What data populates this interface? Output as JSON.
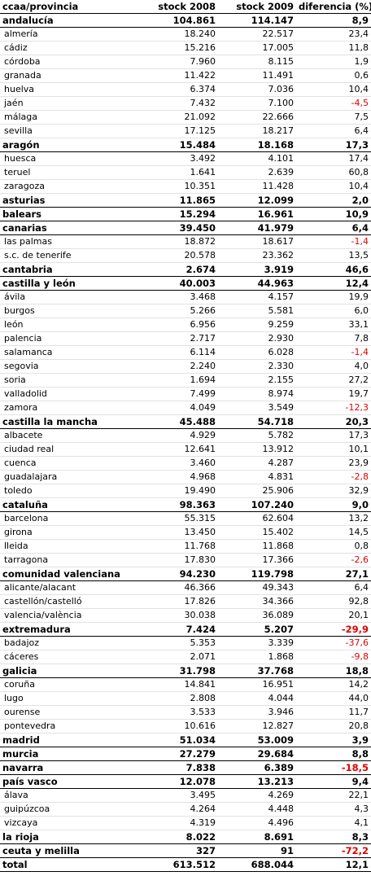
{
  "headers": {
    "col1": "ccaa/provincia",
    "col2": "stock 2008",
    "col3": "stock 2009",
    "col4": "diferencia (%)"
  },
  "rows": [
    {
      "type": "region",
      "name": "andalucía",
      "s2008": "104.861",
      "s2009": "114.147",
      "diff": "8,9"
    },
    {
      "type": "province",
      "name": "almería",
      "s2008": "18.240",
      "s2009": "22.517",
      "diff": "23,4"
    },
    {
      "type": "province",
      "name": "cádiz",
      "s2008": "15.216",
      "s2009": "17.005",
      "diff": "11,8"
    },
    {
      "type": "province",
      "name": "córdoba",
      "s2008": "7.960",
      "s2009": "8.115",
      "diff": "1,9"
    },
    {
      "type": "province",
      "name": "granada",
      "s2008": "11.422",
      "s2009": "11.491",
      "diff": "0,6"
    },
    {
      "type": "province",
      "name": "huelva",
      "s2008": "6.374",
      "s2009": "7.036",
      "diff": "10,4"
    },
    {
      "type": "province",
      "name": "jaén",
      "s2008": "7.432",
      "s2009": "7.100",
      "diff": "-4,5"
    },
    {
      "type": "province",
      "name": "málaga",
      "s2008": "21.092",
      "s2009": "22.666",
      "diff": "7,5"
    },
    {
      "type": "province",
      "name": "sevilla",
      "s2008": "17.125",
      "s2009": "18.217",
      "diff": "6,4"
    },
    {
      "type": "region",
      "name": "aragón",
      "s2008": "15.484",
      "s2009": "18.168",
      "diff": "17,3"
    },
    {
      "type": "province",
      "name": "huesca",
      "s2008": "3.492",
      "s2009": "4.101",
      "diff": "17,4"
    },
    {
      "type": "province",
      "name": "teruel",
      "s2008": "1.641",
      "s2009": "2.639",
      "diff": "60,8"
    },
    {
      "type": "province",
      "name": "zaragoza",
      "s2008": "10.351",
      "s2009": "11.428",
      "diff": "10,4"
    },
    {
      "type": "region",
      "name": "asturias",
      "s2008": "11.865",
      "s2009": "12.099",
      "diff": "2,0"
    },
    {
      "type": "region",
      "name": "balears",
      "s2008": "15.294",
      "s2009": "16.961",
      "diff": "10,9"
    },
    {
      "type": "region",
      "name": "canarias",
      "s2008": "39.450",
      "s2009": "41.979",
      "diff": "6,4"
    },
    {
      "type": "province",
      "name": "las palmas",
      "s2008": "18.872",
      "s2009": "18.617",
      "diff": "-1,4"
    },
    {
      "type": "province",
      "name": "s.c. de tenerife",
      "s2008": "20.578",
      "s2009": "23.362",
      "diff": "13,5"
    },
    {
      "type": "region",
      "name": "cantabria",
      "s2008": "2.674",
      "s2009": "3.919",
      "diff": "46,6"
    },
    {
      "type": "region",
      "name": "castilla y león",
      "s2008": "40.003",
      "s2009": "44.963",
      "diff": "12,4"
    },
    {
      "type": "province",
      "name": "ávila",
      "s2008": "3.468",
      "s2009": "4.157",
      "diff": "19,9"
    },
    {
      "type": "province",
      "name": "burgos",
      "s2008": "5.266",
      "s2009": "5.581",
      "diff": "6,0"
    },
    {
      "type": "province",
      "name": "león",
      "s2008": "6.956",
      "s2009": "9.259",
      "diff": "33,1"
    },
    {
      "type": "province",
      "name": "palencia",
      "s2008": "2.717",
      "s2009": "2.930",
      "diff": "7,8"
    },
    {
      "type": "province",
      "name": "salamanca",
      "s2008": "6.114",
      "s2009": "6.028",
      "diff": "-1,4"
    },
    {
      "type": "province",
      "name": "segovia",
      "s2008": "2.240",
      "s2009": "2.330",
      "diff": "4,0"
    },
    {
      "type": "province",
      "name": "soria",
      "s2008": "1.694",
      "s2009": "2.155",
      "diff": "27,2"
    },
    {
      "type": "province",
      "name": "valladolid",
      "s2008": "7.499",
      "s2009": "8.974",
      "diff": "19,7"
    },
    {
      "type": "province",
      "name": "zamora",
      "s2008": "4.049",
      "s2009": "3.549",
      "diff": "-12,3"
    },
    {
      "type": "region",
      "name": "castilla la mancha",
      "s2008": "45.488",
      "s2009": "54.718",
      "diff": "20,3"
    },
    {
      "type": "province",
      "name": "albacete",
      "s2008": "4.929",
      "s2009": "5.782",
      "diff": "17,3"
    },
    {
      "type": "province",
      "name": "ciudad real",
      "s2008": "12.641",
      "s2009": "13.912",
      "diff": "10,1"
    },
    {
      "type": "province",
      "name": "cuenca",
      "s2008": "3.460",
      "s2009": "4.287",
      "diff": "23,9"
    },
    {
      "type": "province",
      "name": "guadalajara",
      "s2008": "4.968",
      "s2009": "4.831",
      "diff": "-2,8"
    },
    {
      "type": "province",
      "name": "toledo",
      "s2008": "19.490",
      "s2009": "25.906",
      "diff": "32,9"
    },
    {
      "type": "region",
      "name": "cataluña",
      "s2008": "98.363",
      "s2009": "107.240",
      "diff": "9,0"
    },
    {
      "type": "province",
      "name": "barcelona",
      "s2008": "55.315",
      "s2009": "62.604",
      "diff": "13,2"
    },
    {
      "type": "province",
      "name": "girona",
      "s2008": "13.450",
      "s2009": "15.402",
      "diff": "14,5"
    },
    {
      "type": "province",
      "name": "lleida",
      "s2008": "11.768",
      "s2009": "11.868",
      "diff": "0,8"
    },
    {
      "type": "province",
      "name": "tarragona",
      "s2008": "17.830",
      "s2009": "17.366",
      "diff": "-2,6"
    },
    {
      "type": "region",
      "name": "comunidad valenciana",
      "s2008": "94.230",
      "s2009": "119.798",
      "diff": "27,1"
    },
    {
      "type": "province",
      "name": "alicante/alacant",
      "s2008": "46.366",
      "s2009": "49.343",
      "diff": "6,4"
    },
    {
      "type": "province",
      "name": "castellón/castelló",
      "s2008": "17.826",
      "s2009": "34.366",
      "diff": "92,8"
    },
    {
      "type": "province",
      "name": "valencia/valència",
      "s2008": "30.038",
      "s2009": "36.089",
      "diff": "20,1"
    },
    {
      "type": "region",
      "name": "extremadura",
      "s2008": "7.424",
      "s2009": "5.207",
      "diff": "-29,9"
    },
    {
      "type": "province",
      "name": "badajoz",
      "s2008": "5.353",
      "s2009": "3.339",
      "diff": "-37,6"
    },
    {
      "type": "province",
      "name": "cáceres",
      "s2008": "2.071",
      "s2009": "1.868",
      "diff": "-9,8"
    },
    {
      "type": "region",
      "name": "galicia",
      "s2008": "31.798",
      "s2009": "37.768",
      "diff": "18,8"
    },
    {
      "type": "province",
      "name": "coruña",
      "s2008": "14.841",
      "s2009": "16.951",
      "diff": "14,2"
    },
    {
      "type": "province",
      "name": "lugo",
      "s2008": "2.808",
      "s2009": "4.044",
      "diff": "44,0"
    },
    {
      "type": "province",
      "name": "ourense",
      "s2008": "3.533",
      "s2009": "3.946",
      "diff": "11,7"
    },
    {
      "type": "province",
      "name": "pontevedra",
      "s2008": "10.616",
      "s2009": "12.827",
      "diff": "20,8"
    },
    {
      "type": "region",
      "name": "madrid",
      "s2008": "51.034",
      "s2009": "53.009",
      "diff": "3,9"
    },
    {
      "type": "region",
      "name": "murcia",
      "s2008": "27.279",
      "s2009": "29.684",
      "diff": "8,8"
    },
    {
      "type": "region",
      "name": "navarra",
      "s2008": "7.838",
      "s2009": "6.389",
      "diff": "-18,5"
    },
    {
      "type": "region",
      "name": "país vasco",
      "s2008": "12.078",
      "s2009": "13.213",
      "diff": "9,4"
    },
    {
      "type": "province",
      "name": "álava",
      "s2008": "3.495",
      "s2009": "4.269",
      "diff": "22,1"
    },
    {
      "type": "province",
      "name": "guipúzcoa",
      "s2008": "4.264",
      "s2009": "4.448",
      "diff": "4,3"
    },
    {
      "type": "province",
      "name": "vizcaya",
      "s2008": "4.319",
      "s2009": "4.496",
      "diff": "4,1"
    },
    {
      "type": "region",
      "name": "la rioja",
      "s2008": "8.022",
      "s2009": "8.691",
      "diff": "8,3"
    },
    {
      "type": "region",
      "name": "ceuta y melilla",
      "s2008": "327",
      "s2009": "91",
      "diff": "-72,2"
    },
    {
      "type": "total",
      "name": "total",
      "s2008": "613.512",
      "s2009": "688.044",
      "diff": "12,1"
    }
  ],
  "colors": {
    "negative": "#e00000",
    "text": "#000000",
    "rule": "#000000"
  }
}
